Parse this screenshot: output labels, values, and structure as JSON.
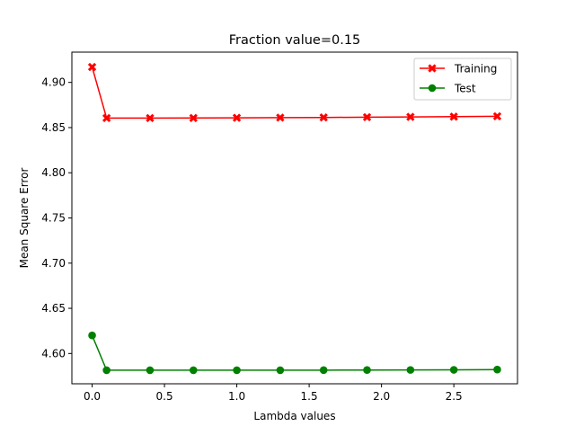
{
  "chart_data": {
    "type": "line",
    "title": "Fraction value=0.15",
    "xlabel": "Lambda values",
    "ylabel": "Mean Square Error",
    "xlim": [
      -0.14,
      2.94
    ],
    "ylim": [
      4.5665,
      4.9335
    ],
    "xticks": [
      0.0,
      0.5,
      1.0,
      1.5,
      2.0,
      2.5
    ],
    "xtick_labels": [
      "0.0",
      "0.5",
      "1.0",
      "1.5",
      "2.0",
      "2.5"
    ],
    "yticks": [
      4.6,
      4.65,
      4.7,
      4.75,
      4.8,
      4.85,
      4.9
    ],
    "ytick_labels": [
      "4.60",
      "4.65",
      "4.70",
      "4.75",
      "4.80",
      "4.85",
      "4.90"
    ],
    "grid": false,
    "legend_position": "top-right",
    "x": [
      0.0,
      0.1,
      0.4,
      0.7,
      1.0,
      1.3,
      1.6,
      1.9,
      2.2,
      2.5,
      2.8
    ],
    "series": [
      {
        "name": "Training",
        "color": "#ff0000",
        "marker": "x",
        "values": [
          4.917,
          4.8605,
          4.8605,
          4.8606,
          4.8608,
          4.861,
          4.8612,
          4.8615,
          4.8618,
          4.8621,
          4.8625
        ]
      },
      {
        "name": "Test",
        "color": "#008000",
        "marker": "circle",
        "values": [
          4.62,
          4.5815,
          4.5815,
          4.5815,
          4.5815,
          4.5815,
          4.5816,
          4.5817,
          4.5818,
          4.5819,
          4.5822
        ]
      }
    ]
  }
}
